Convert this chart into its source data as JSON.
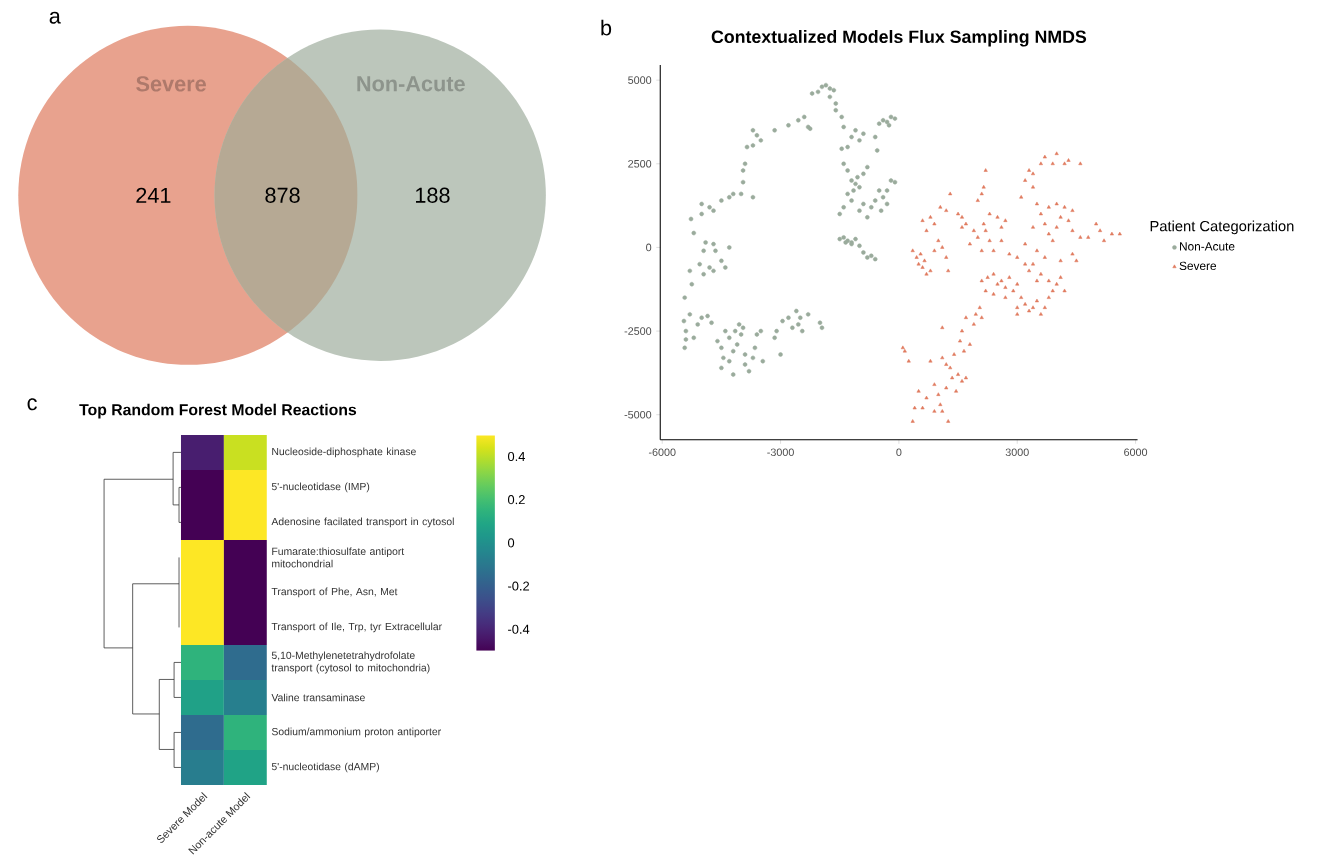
{
  "chart_data": [
    {
      "type": "other",
      "categories": [
        "Severe",
        null,
        "Non-Acute"
      ],
      "values": [
        241,
        878,
        188
      ],
      "colors": [
        "#e8a28e",
        "#b6a994",
        "#bcc6bb"
      ],
      "data_labels": true,
      "annotations": [
        "a"
      ]
    },
    {
      "type": "scatter",
      "title": "Contextualized Models Flux Sampling NMDS",
      "legend_title": "Patient Categorization",
      "legend": "right",
      "annotations": [
        "b"
      ],
      "xlim": [
        -6050,
        6050
      ],
      "ylim": [
        -5750,
        5450
      ],
      "xticks": [
        -6000,
        -3000,
        0,
        3000,
        6000
      ],
      "yticks": [
        -5000,
        -2500,
        0,
        2500,
        5000
      ],
      "series": [
        {
          "name": "Non-Acute",
          "color": "#9aab9c",
          "marker": "circle",
          "x": [
            -1950,
            -1850,
            -1750,
            -1650,
            -1750,
            -1600,
            -1600,
            -2200,
            -2050,
            -1450,
            -2400,
            -2550,
            -2800,
            -2300,
            -2250,
            -3150,
            -3600,
            -3700,
            -3500,
            -3850,
            -3700,
            -3900,
            -3950,
            -3950,
            -4000,
            -3700,
            -4300,
            -4200,
            -4500,
            -4800,
            -5000,
            -5000,
            -4700,
            -5270,
            -5200,
            -4900,
            -4700,
            -4650,
            -4950,
            -4500,
            -4400,
            -4300,
            -4800,
            -5050,
            -4950,
            -4700,
            -5300,
            -5250,
            -5430,
            -5450,
            -5400,
            -5300,
            -5200,
            -5100,
            -5000,
            -4850,
            -4750,
            -4600,
            -4500,
            -4450,
            -4300,
            -4200,
            -4100,
            -4000,
            -3950,
            -4050,
            -4150,
            -4300,
            -4400,
            -3900,
            -3800,
            -3700,
            -3650,
            -3600,
            -3500,
            -3450,
            -4500,
            -4200,
            -3900,
            -5430,
            -5400,
            -3150,
            -3100,
            -3000,
            -2950,
            -2800,
            -2700,
            -2600,
            -2500,
            -2450,
            -2300,
            -2550,
            -2000,
            -1950,
            -1400,
            -1200,
            -1100,
            -1000,
            -900,
            -1300,
            -1450,
            -600,
            -500,
            -400,
            -300,
            -200,
            -100,
            -250,
            -550,
            -1400,
            -1300,
            -1200,
            -1100,
            -1000,
            -1150,
            -1050,
            -1300,
            -900,
            -800,
            -1400,
            -1200,
            -1000,
            -900,
            -700,
            -600,
            -500,
            -400,
            -300,
            -200,
            -100,
            -1500,
            -800,
            -300,
            -450,
            -1500,
            -1400,
            -1300,
            -1200,
            -1100,
            -1000,
            -900,
            -800,
            -700,
            -600,
            -1200,
            -1350
          ],
          "values": [
            4800,
            4850,
            4750,
            4700,
            4500,
            4300,
            4100,
            4600,
            4650,
            3900,
            3900,
            3800,
            3650,
            3600,
            3550,
            3500,
            3350,
            3500,
            3200,
            3000,
            3050,
            2500,
            2300,
            1950,
            1600,
            1500,
            1500,
            1600,
            1400,
            1200,
            1300,
            1000,
            1100,
            850,
            430,
            150,
            100,
            -100,
            -100,
            -400,
            -600,
            0,
            -600,
            -500,
            -800,
            -700,
            -700,
            -1100,
            -1500,
            -2200,
            -2500,
            -2000,
            -2700,
            -2300,
            -2100,
            -2050,
            -2250,
            -2800,
            -3000,
            -3300,
            -3400,
            -3100,
            -2900,
            -2600,
            -2400,
            -2300,
            -2500,
            -2700,
            -2500,
            -3500,
            -3700,
            -3300,
            -3000,
            -2600,
            -2500,
            -3400,
            -3600,
            -3800,
            -3200,
            -3000,
            -2750,
            -2700,
            -2500,
            -3200,
            -2200,
            -2100,
            -2400,
            -1900,
            -2100,
            -2500,
            -2000,
            -2300,
            -2250,
            -2400,
            3600,
            3300,
            3500,
            3200,
            3400,
            3000,
            2950,
            3300,
            3700,
            3800,
            3750,
            3900,
            3850,
            3650,
            2900,
            2500,
            2300,
            2000,
            1900,
            1800,
            1700,
            2100,
            1600,
            2200,
            2400,
            1200,
            1400,
            1100,
            1300,
            1200,
            1400,
            1700,
            1500,
            1700,
            2000,
            1950,
            1000,
            900,
            1300,
            1100,
            250,
            300,
            200,
            150,
            250,
            50,
            -150,
            -300,
            -250,
            -350,
            100,
            150
          ]
        },
        {
          "name": "Severe",
          "color": "#e07b5f",
          "marker": "triangle",
          "x": [
            100,
            150,
            250,
            350,
            400,
            500,
            600,
            700,
            800,
            900,
            900,
            1000,
            1050,
            1100,
            1100,
            1100,
            1200,
            1200,
            1250,
            1300,
            1350,
            1400,
            1450,
            1500,
            1550,
            1600,
            1700,
            1650,
            1700,
            1800,
            1900,
            1950,
            2050,
            2100,
            1600,
            350,
            450,
            500,
            600,
            700,
            800,
            550,
            650,
            600,
            700,
            800,
            900,
            1000,
            1100,
            900,
            1200,
            1250,
            1050,
            1200,
            1300,
            1500,
            1600,
            1700,
            1600,
            2000,
            2100,
            2150,
            2200,
            1900,
            2000,
            2150,
            2200,
            1800,
            2300,
            2400,
            2300,
            2500,
            2600,
            2600,
            2800,
            2700,
            2100,
            2100,
            2250,
            2400,
            2500,
            2600,
            2700,
            2800,
            2900,
            3000,
            3100,
            3200,
            3300,
            3400,
            3500,
            3600,
            3700,
            3800,
            3900,
            4000,
            3800,
            3500,
            3300,
            3200,
            3400,
            3600,
            4100,
            4200,
            2200,
            2400,
            2700,
            3000,
            3000,
            3100,
            3200,
            3300,
            3400,
            3600,
            3700,
            3900,
            4000,
            4200,
            4300,
            4600,
            3400,
            3500,
            3600,
            3700,
            3800,
            3900,
            4000,
            4100,
            4200,
            4300,
            4400,
            4600,
            4800,
            5000,
            5100,
            5200,
            5400,
            5600,
            3500,
            3700,
            4100,
            4400,
            4500,
            4000,
            3800,
            4400,
            3400,
            3200,
            3000
          ],
          "values": [
            -3000,
            -3100,
            -3400,
            -5200,
            -4800,
            -4300,
            -4800,
            -4500,
            -3400,
            -4100,
            -4900,
            -4400,
            -4700,
            -4900,
            -2400,
            -3300,
            -3500,
            -4200,
            -5200,
            -3600,
            -3900,
            -3200,
            -4300,
            -3800,
            -2800,
            -4000,
            -3900,
            -3100,
            -2100,
            -2900,
            -2300,
            -2000,
            -1800,
            -2100,
            -2500,
            -100,
            -300,
            -500,
            -600,
            -800,
            -700,
            -200,
            -400,
            800,
            500,
            900,
            700,
            200,
            0,
            -100,
            -300,
            -700,
            1200,
            1100,
            1600,
            1000,
            600,
            700,
            900,
            1400,
            1600,
            1800,
            2300,
            500,
            300,
            700,
            500,
            100,
            200,
            -100,
            1000,
            900,
            600,
            200,
            -200,
            800,
            -100,
            -1000,
            -900,
            -800,
            -1100,
            -1000,
            -1200,
            -900,
            -1300,
            -1100,
            -1500,
            -1700,
            -1900,
            -1800,
            -1600,
            -2000,
            -1800,
            -1500,
            -1300,
            -1100,
            -1000,
            -1000,
            -700,
            -500,
            -500,
            -800,
            -900,
            -1300,
            -1300,
            -1400,
            -1500,
            -1800,
            -2000,
            1500,
            2000,
            2300,
            2200,
            2500,
            2700,
            2500,
            2800,
            2500,
            2600,
            2500,
            1800,
            1300,
            1000,
            700,
            400,
            200,
            600,
            900,
            1200,
            800,
            500,
            300,
            300,
            700,
            500,
            200,
            400,
            400,
            -100,
            -300,
            -400,
            -200,
            -400,
            1300,
            1200,
            1100,
            600,
            100,
            -300
          ]
        }
      ]
    },
    {
      "type": "heatmap",
      "title": "Top Random Forest Model Reactions",
      "annotations": [
        "c"
      ],
      "categories": [
        "Severe Model",
        "Non-acute Model"
      ],
      "y_categories": [
        "Nucleoside-diphosphate kinase",
        "5'-nucleotidase (IMP)",
        "Adenosine facilated transport in cytosol",
        "Fumarate:thiosulfate antiport mitochondrial",
        "Transport of Phe, Asn, Met",
        "Transport of Ile, Trp, tyr Extracellular",
        "5,10-Methylenetetrahydrofolate transport (cytosol to mitochondria)",
        "Valine transaminase",
        "Sodium/ammonium proton antiporter",
        "5'-nucleotidase (dAMP)"
      ],
      "cells": [
        [
          -0.42,
          0.42
        ],
        [
          -0.5,
          0.5
        ],
        [
          -0.5,
          0.5
        ],
        [
          0.5,
          -0.5
        ],
        [
          0.5,
          -0.5
        ],
        [
          0.5,
          -0.5
        ],
        [
          0.15,
          -0.15
        ],
        [
          0.07,
          -0.07
        ],
        [
          -0.15,
          0.15
        ],
        [
          -0.08,
          0.08
        ]
      ],
      "clim": [
        -0.5,
        0.5
      ],
      "cticks": [
        -0.4,
        -0.2,
        0,
        0.2,
        0.4
      ]
    }
  ]
}
